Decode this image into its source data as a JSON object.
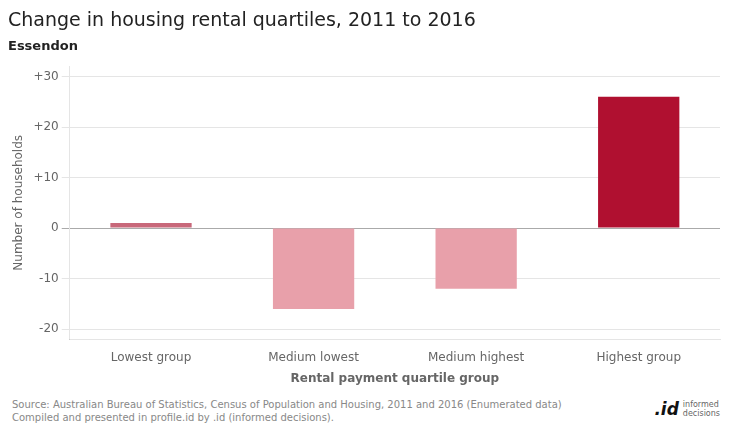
{
  "chart_data": {
    "type": "bar",
    "title": "Change in housing rental quartiles, 2011 to 2016",
    "subtitle": "Essendon",
    "categories": [
      "Lowest group",
      "Medium lowest",
      "Medium highest",
      "Highest group"
    ],
    "values": [
      1,
      -16,
      -12,
      26
    ],
    "colors": [
      "#c8687a",
      "#e8a0aa",
      "#e8a0aa",
      "#b01030"
    ],
    "ylabel": "Number of households",
    "xlabel": "Rental payment quartile group",
    "ylim": [
      -22,
      32
    ],
    "yticks": [
      -20,
      -10,
      0,
      {
        "value": 10,
        "label": "+10"
      },
      {
        "value": 20,
        "label": "+20"
      },
      {
        "value": 30,
        "label": "+30"
      }
    ],
    "grid": true,
    "annotations": [
      "Source: Australian Bureau of Statistics, Census of Population and Housing, 2011 and 2016 (Enumerated data)\nCompiled and presented in profile.id by .id (informed decisions).",
      ".id",
      "informed\ndecisions"
    ]
  }
}
